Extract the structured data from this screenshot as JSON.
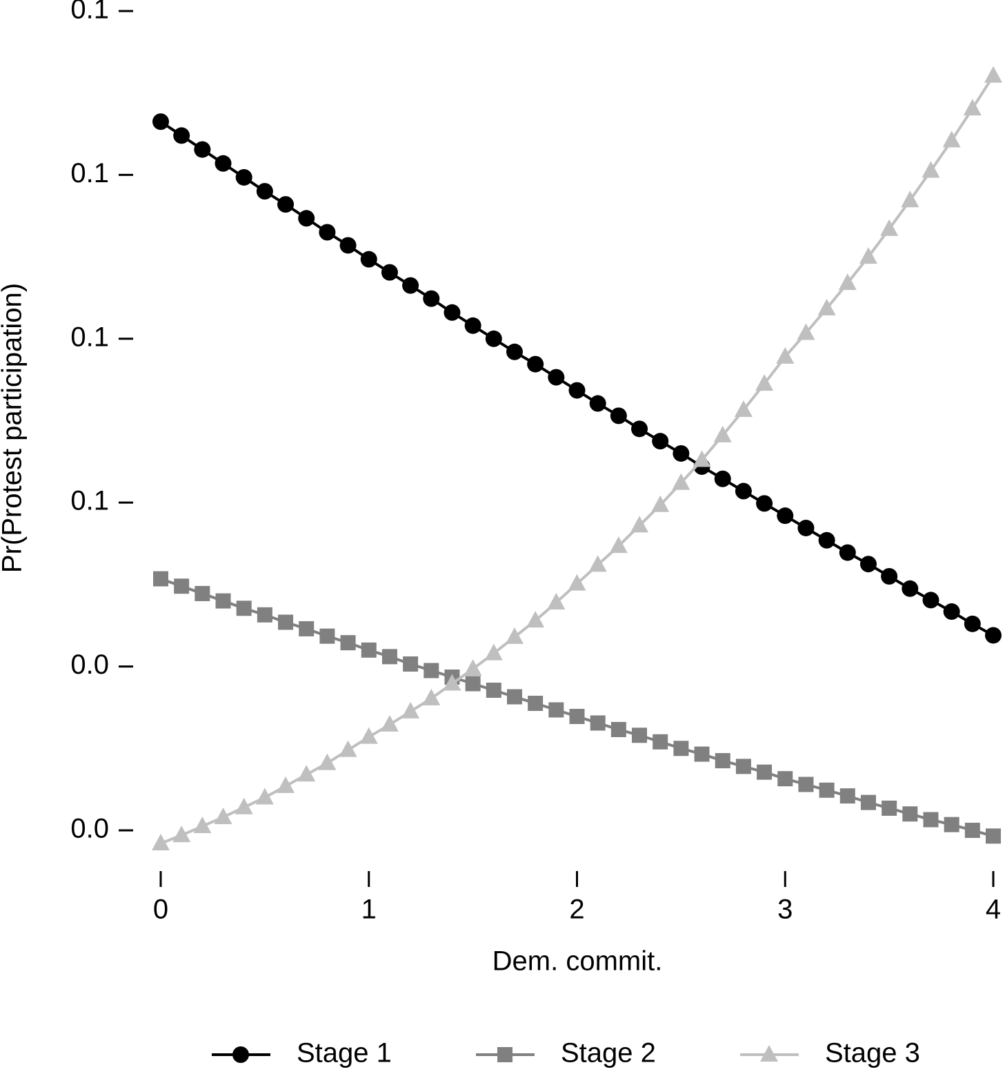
{
  "chart_data": {
    "type": "line",
    "x_label": "Dem. commit.",
    "y_label": "Pr(Protest participation)",
    "x": [
      0,
      0.1,
      0.2,
      0.3,
      0.4,
      0.5,
      0.6,
      0.7,
      0.8,
      0.9,
      1,
      1.1,
      1.2,
      1.3,
      1.4,
      1.5,
      1.6,
      1.7,
      1.8,
      1.9,
      2,
      2.1,
      2.2,
      2.3,
      2.4,
      2.5,
      2.6,
      2.7,
      2.8,
      2.9,
      3,
      3.1,
      3.2,
      3.3,
      3.4,
      3.5,
      3.6,
      3.7,
      3.8,
      3.9,
      4
    ],
    "series": [
      {
        "name": "Stage 1",
        "color": "#000000",
        "marker": "circle",
        "values": [
          0.1065,
          0.1048,
          0.1031,
          0.1014,
          0.0997,
          0.098,
          0.0964,
          0.0947,
          0.093,
          0.0914,
          0.0897,
          0.0881,
          0.0865,
          0.0849,
          0.0832,
          0.0816,
          0.08,
          0.0784,
          0.0769,
          0.0753,
          0.0737,
          0.0721,
          0.0706,
          0.069,
          0.0675,
          0.066,
          0.0644,
          0.0629,
          0.0614,
          0.0599,
          0.0584,
          0.0569,
          0.0554,
          0.0539,
          0.0525,
          0.051,
          0.0495,
          0.0481,
          0.0467,
          0.0452,
          0.0438
        ]
      },
      {
        "name": "Stage 2",
        "color": "#808080",
        "marker": "square",
        "values": [
          0.0507,
          0.0498,
          0.0489,
          0.048,
          0.0471,
          0.0463,
          0.0454,
          0.0446,
          0.0437,
          0.0429,
          0.042,
          0.0412,
          0.0403,
          0.0395,
          0.0387,
          0.0379,
          0.0371,
          0.0363,
          0.0355,
          0.0347,
          0.0339,
          0.0331,
          0.0323,
          0.0316,
          0.0308,
          0.03,
          0.0293,
          0.0285,
          0.0278,
          0.0271,
          0.0263,
          0.0256,
          0.0249,
          0.0242,
          0.0234,
          0.0227,
          0.022,
          0.0213,
          0.0207,
          0.02,
          0.0193
        ]
      },
      {
        "name": "Stage 3",
        "color": "#bfbfbf",
        "marker": "triangle",
        "values": [
          0.0184,
          0.0194,
          0.0205,
          0.0216,
          0.0228,
          0.024,
          0.0254,
          0.0268,
          0.0282,
          0.0298,
          0.0314,
          0.0329,
          0.0345,
          0.0361,
          0.0379,
          0.0397,
          0.0416,
          0.0436,
          0.0456,
          0.0478,
          0.0501,
          0.0524,
          0.0547,
          0.0572,
          0.0597,
          0.0624,
          0.0652,
          0.0682,
          0.0713,
          0.0745,
          0.0778,
          0.0807,
          0.0837,
          0.0868,
          0.09,
          0.0934,
          0.0969,
          0.1005,
          0.1042,
          0.1081,
          0.1121
        ]
      }
    ],
    "xlim": [
      0,
      4
    ],
    "xticks": [
      0,
      1,
      2,
      3,
      4
    ],
    "ylim": [
      0.018,
      0.12
    ],
    "yticks": [
      {
        "value": 0.02,
        "label": "0.0"
      },
      {
        "value": 0.04,
        "label": "0.0"
      },
      {
        "value": 0.06,
        "label": "0.1"
      },
      {
        "value": 0.08,
        "label": "0.1"
      },
      {
        "value": 0.1,
        "label": "0.1"
      },
      {
        "value": 0.12,
        "label": "0.1"
      }
    ],
    "grid": false,
    "legend": "bottom"
  }
}
